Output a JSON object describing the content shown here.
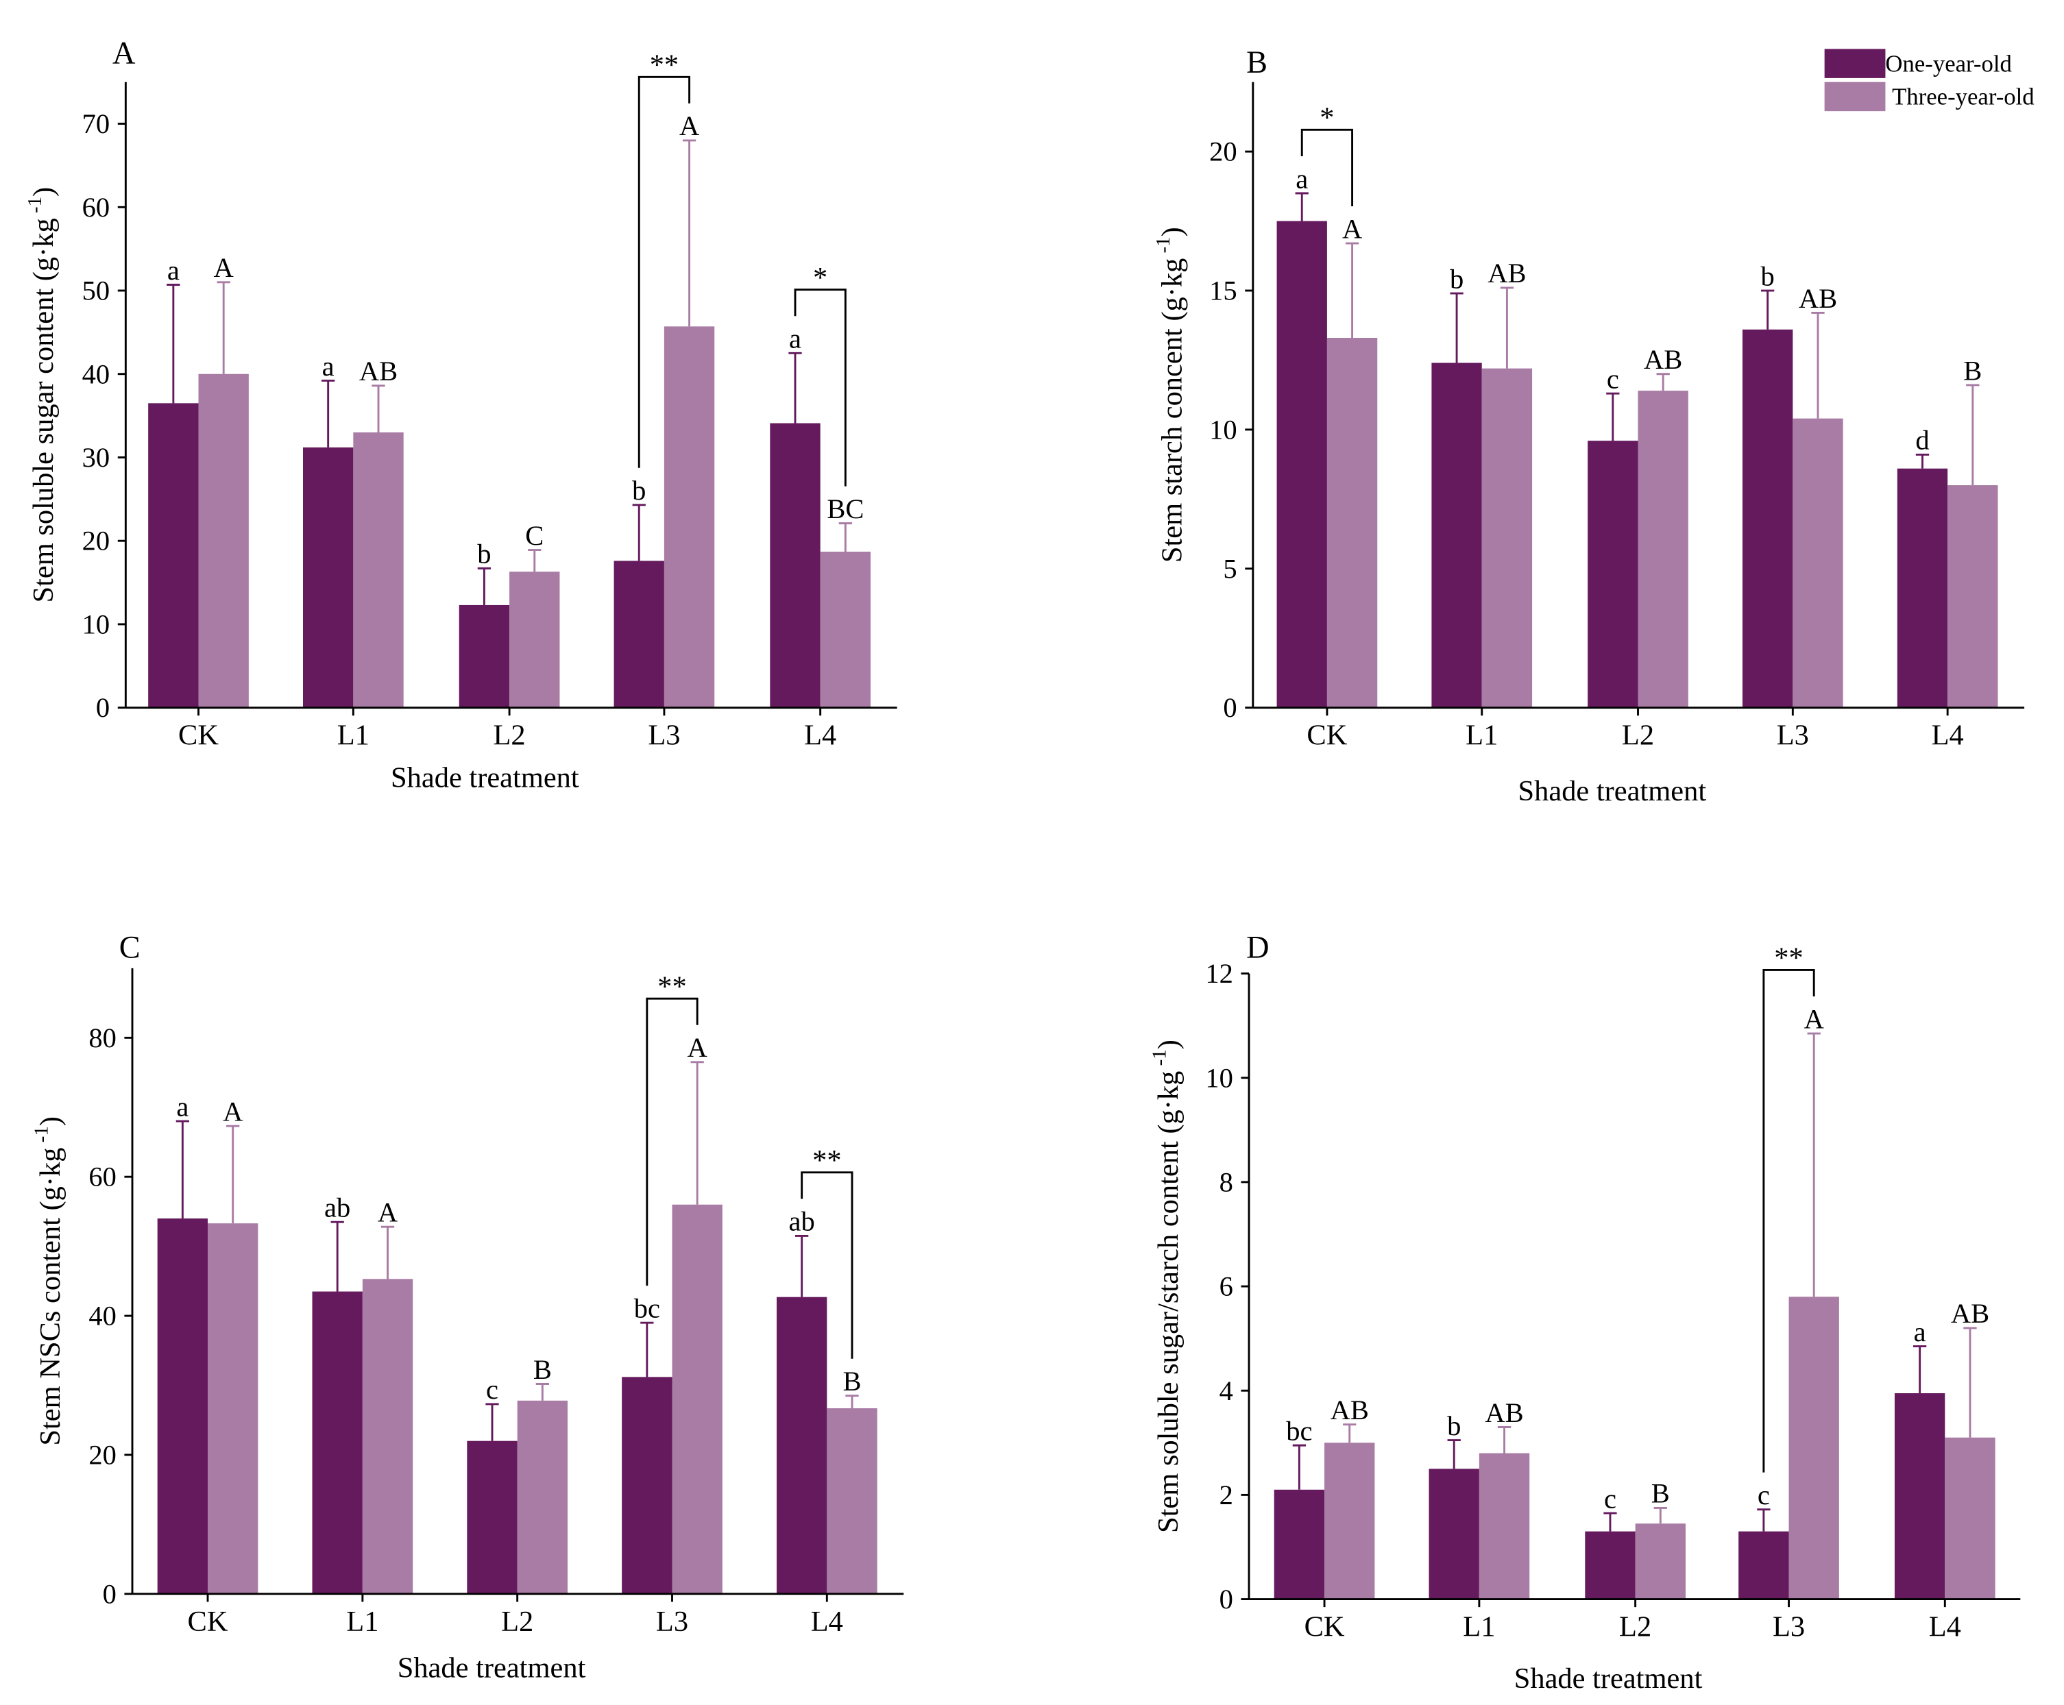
{
  "colors": {
    "one_year": "#651a5e",
    "three_year": "#a87ca4",
    "axis": "#000000"
  },
  "legend": {
    "items": [
      "One-year-old",
      "Three-year-old"
    ]
  },
  "chart_data": [
    {
      "panel": "A",
      "type": "bar",
      "xlabel": "Shade treatment",
      "ylabel": "Stem soluble sugar content (g·kg",
      "ylabel_sup": "-1",
      "ylabel_close": ")",
      "ylim": [
        0,
        75
      ],
      "yticks": [
        0,
        10,
        20,
        30,
        40,
        50,
        60,
        70
      ],
      "categories": [
        "CK",
        "L1",
        "L2",
        "L3",
        "L4"
      ],
      "series": [
        {
          "name": "One-year-old",
          "values": [
            36.5,
            31.2,
            12.3,
            17.6,
            34.1
          ],
          "err_top": [
            50.7,
            39.2,
            16.7,
            24.3,
            42.5
          ],
          "letters": [
            "a",
            "a",
            "b",
            "b",
            "a"
          ]
        },
        {
          "name": "Three-year-old",
          "values": [
            40.0,
            33.0,
            16.3,
            45.7,
            18.7
          ],
          "err_top": [
            51.0,
            38.6,
            18.9,
            68.0,
            22.1
          ],
          "letters": [
            "A",
            "AB",
            "C",
            "A",
            "BC"
          ]
        }
      ],
      "significance": [
        {
          "category": "L3",
          "mark": "**"
        },
        {
          "category": "L4",
          "mark": "*"
        }
      ]
    },
    {
      "panel": "B",
      "type": "bar",
      "xlabel": "Shade treatment",
      "ylabel": "Stem starch concent (g·kg",
      "ylabel_sup": "-1",
      "ylabel_close": ")",
      "ylim": [
        0,
        22.5
      ],
      "yticks": [
        0,
        5,
        10,
        15,
        20
      ],
      "categories": [
        "CK",
        "L1",
        "L2",
        "L3",
        "L4"
      ],
      "series": [
        {
          "name": "One-year-old",
          "values": [
            17.5,
            12.4,
            9.6,
            13.6,
            8.6
          ],
          "err_top": [
            18.5,
            14.9,
            11.3,
            15.0,
            9.1
          ],
          "letters": [
            "a",
            "b",
            "c",
            "b",
            "d"
          ]
        },
        {
          "name": "Three-year-old",
          "values": [
            13.3,
            12.2,
            11.4,
            10.4,
            8.0
          ],
          "err_top": [
            16.7,
            15.1,
            12.0,
            14.2,
            11.6
          ],
          "letters": [
            "A",
            "AB",
            "AB",
            "AB",
            "B"
          ]
        }
      ],
      "significance": [
        {
          "category": "CK",
          "mark": "*"
        }
      ],
      "legend": "top-right"
    },
    {
      "panel": "C",
      "type": "bar",
      "xlabel": "Shade treatment",
      "ylabel": "Stem NSCs content (g·kg",
      "ylabel_sup": "-1",
      "ylabel_close": ")",
      "ylim": [
        0,
        90
      ],
      "yticks": [
        0,
        20,
        40,
        60,
        80
      ],
      "categories": [
        "CK",
        "L1",
        "L2",
        "L3",
        "L4"
      ],
      "series": [
        {
          "name": "One-year-old",
          "values": [
            54.0,
            43.5,
            22.0,
            31.2,
            42.7
          ],
          "err_top": [
            68.0,
            53.5,
            27.3,
            39.0,
            51.5
          ],
          "letters": [
            "a",
            "ab",
            "c",
            "bc",
            "ab"
          ]
        },
        {
          "name": "Three-year-old",
          "values": [
            53.3,
            45.3,
            27.8,
            56.0,
            26.7
          ],
          "err_top": [
            67.3,
            52.8,
            30.2,
            76.5,
            28.5
          ],
          "letters": [
            "A",
            "A",
            "B",
            "A",
            "B"
          ]
        }
      ],
      "significance": [
        {
          "category": "L3",
          "mark": "**"
        },
        {
          "category": "L4",
          "mark": "**"
        }
      ]
    },
    {
      "panel": "D",
      "type": "bar",
      "xlabel": "Shade treatment",
      "ylabel": "Stem soluble sugar/starch content (g·kg",
      "ylabel_sup": "-1",
      "ylabel_close": ")",
      "ylim": [
        0,
        12
      ],
      "yticks": [
        0,
        2,
        4,
        6,
        8,
        10,
        12
      ],
      "categories": [
        "CK",
        "L1",
        "L2",
        "L3",
        "L4"
      ],
      "series": [
        {
          "name": "One-year-old",
          "values": [
            2.1,
            2.5,
            1.3,
            1.3,
            3.95
          ],
          "err_top": [
            2.95,
            3.05,
            1.65,
            1.72,
            4.85
          ],
          "letters": [
            "bc",
            "b",
            "c",
            "c",
            "a"
          ]
        },
        {
          "name": "Three-year-old",
          "values": [
            3.0,
            2.8,
            1.45,
            5.8,
            3.1
          ],
          "err_top": [
            3.35,
            3.3,
            1.75,
            10.85,
            5.2
          ],
          "letters": [
            "AB",
            "AB",
            "B",
            "A",
            "AB"
          ]
        }
      ],
      "significance": [
        {
          "category": "L3",
          "mark": "**"
        }
      ]
    }
  ]
}
